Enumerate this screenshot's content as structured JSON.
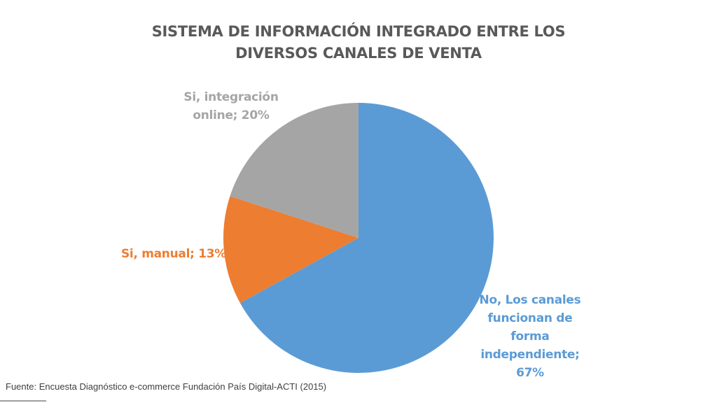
{
  "chart_data": {
    "type": "pie",
    "title_lines": [
      "SISTEMA DE INFORMACIÓN INTEGRADO ENTRE LOS",
      "DIVERSOS CANALES DE VENTA"
    ],
    "slices": [
      {
        "label_lines": [
          "No, Los canales",
          "funcionan de",
          "forma",
          "independiente;",
          "67%"
        ],
        "value": 67,
        "color": "#5B9BD5"
      },
      {
        "label_lines": [
          "Si, manual; 13%"
        ],
        "value": 13,
        "color": "#ED7D31"
      },
      {
        "label_lines": [
          "Si, integración",
          "online; 20%"
        ],
        "value": 20,
        "color": "#A5A5A5"
      }
    ],
    "start_angle_deg": 0,
    "direction": "clockwise",
    "legend": "none"
  },
  "source": "Fuente: Encuesta Diagnóstico e-commerce Fundación País Digital-ACTI (2015)"
}
